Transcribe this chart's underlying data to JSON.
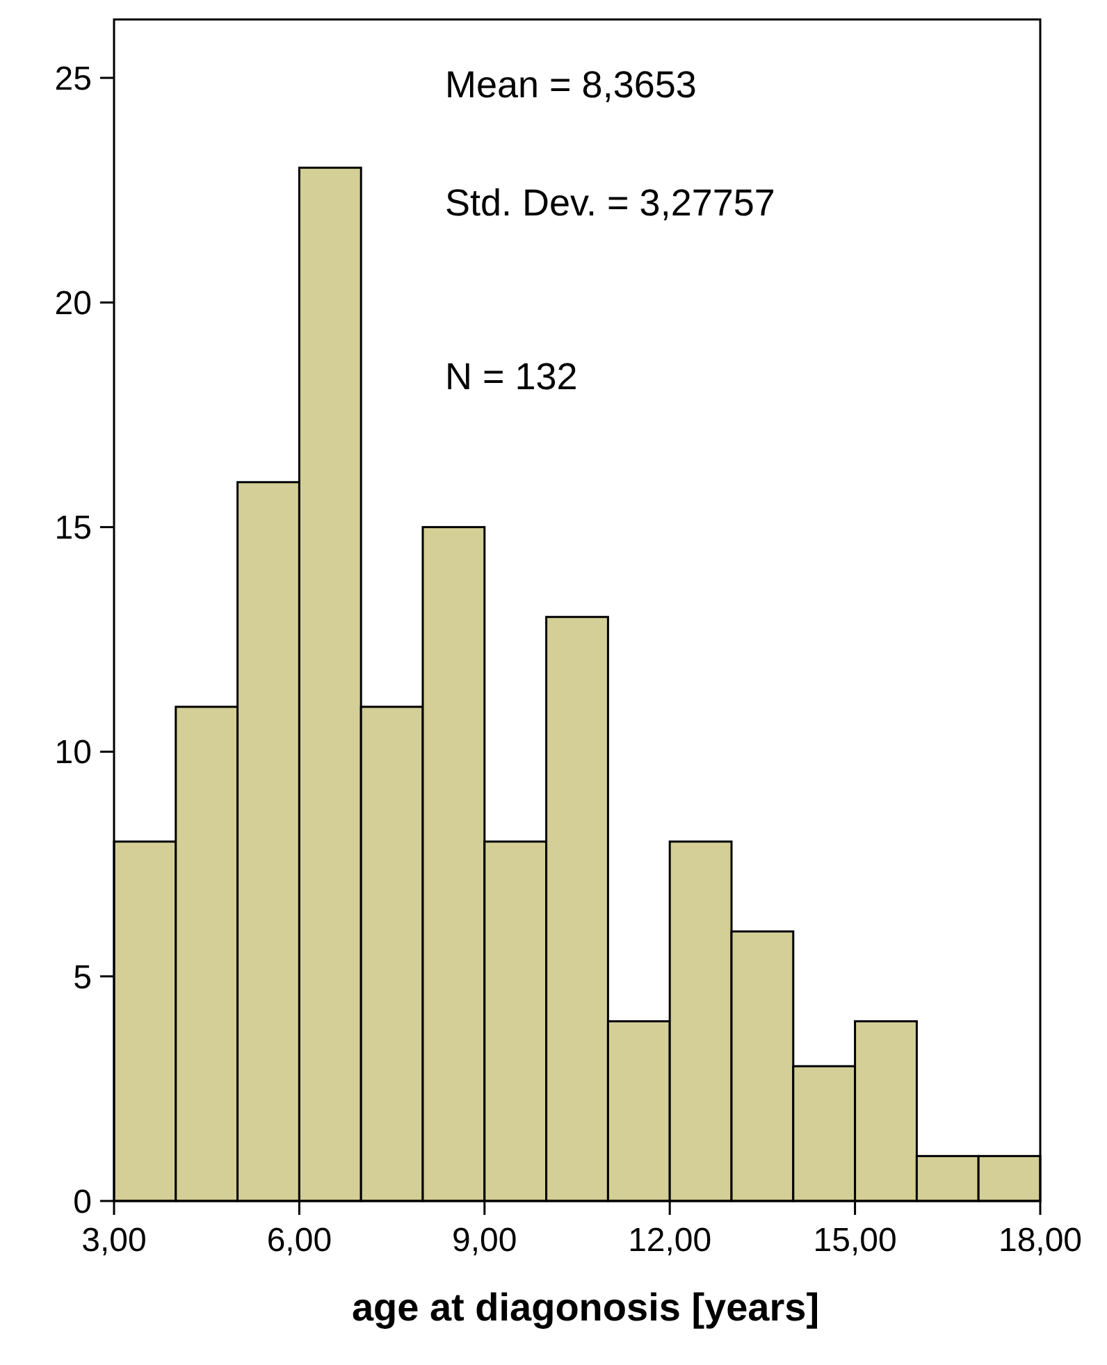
{
  "chart_data": {
    "type": "histogram",
    "xlabel": "age at diagonosis [years]",
    "bins": [
      3,
      4,
      5,
      6,
      7,
      8,
      9,
      10,
      11,
      12,
      13,
      14,
      15,
      16,
      17,
      18
    ],
    "values": [
      8,
      11,
      16,
      23,
      11,
      15,
      8,
      13,
      4,
      8,
      6,
      3,
      4,
      1,
      1
    ],
    "color": "#d4cf96",
    "xlim": [
      3,
      18
    ],
    "xticks": [
      {
        "value": 3,
        "label": "3,00"
      },
      {
        "value": 6,
        "label": "6,00"
      },
      {
        "value": 9,
        "label": "9,00"
      },
      {
        "value": 12,
        "label": "12,00"
      },
      {
        "value": 15,
        "label": "15,00"
      },
      {
        "value": 18,
        "label": "18,00"
      }
    ],
    "ylim": [
      0,
      26.3
    ],
    "yticks": [
      0,
      5,
      10,
      15,
      20,
      25
    ],
    "grid": false,
    "annotations": [
      "Mean = 8,3653",
      "Std. Dev. = 3,27757",
      "N = 132"
    ]
  }
}
